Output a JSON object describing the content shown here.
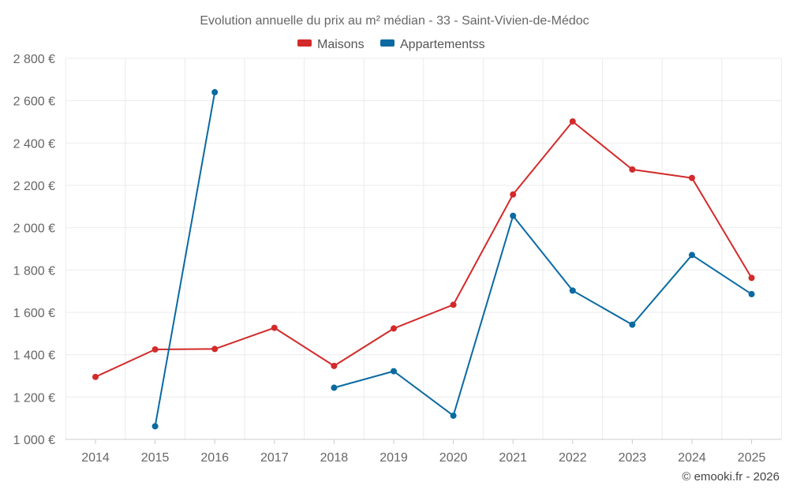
{
  "chart_data": {
    "type": "line",
    "title": "Evolution annuelle du prix au m² médian - 33 - Saint-Vivien-de-Médoc",
    "categories": [
      "2014",
      "2015",
      "2016",
      "2017",
      "2018",
      "2019",
      "2020",
      "2021",
      "2022",
      "2023",
      "2024",
      "2025"
    ],
    "series": [
      {
        "name": "Maisons",
        "color": "#d32a2a",
        "values": [
          1295,
          1425,
          1427,
          1527,
          1347,
          1524,
          1636,
          2157,
          2502,
          2275,
          2235,
          1763
        ]
      },
      {
        "name": "Appartementss",
        "color": "#0a6aa1",
        "values": [
          null,
          1062,
          2640,
          null,
          1244,
          1322,
          1112,
          2056,
          1703,
          1542,
          1871,
          1686
        ]
      }
    ],
    "ylim": [
      1000,
      2800
    ],
    "yticks": [
      1000,
      1200,
      1400,
      1600,
      1800,
      2000,
      2200,
      2400,
      2600,
      2800
    ],
    "ytick_labels": [
      "1 000 €",
      "1 200 €",
      "1 400 €",
      "1 600 €",
      "1 800 €",
      "2 000 €",
      "2 200 €",
      "2 400 €",
      "2 600 €",
      "2 800 €"
    ],
    "legend_position": "top-center",
    "grid": true,
    "xlabel": "",
    "ylabel": ""
  },
  "credit": "© emooki.fr - 2026"
}
